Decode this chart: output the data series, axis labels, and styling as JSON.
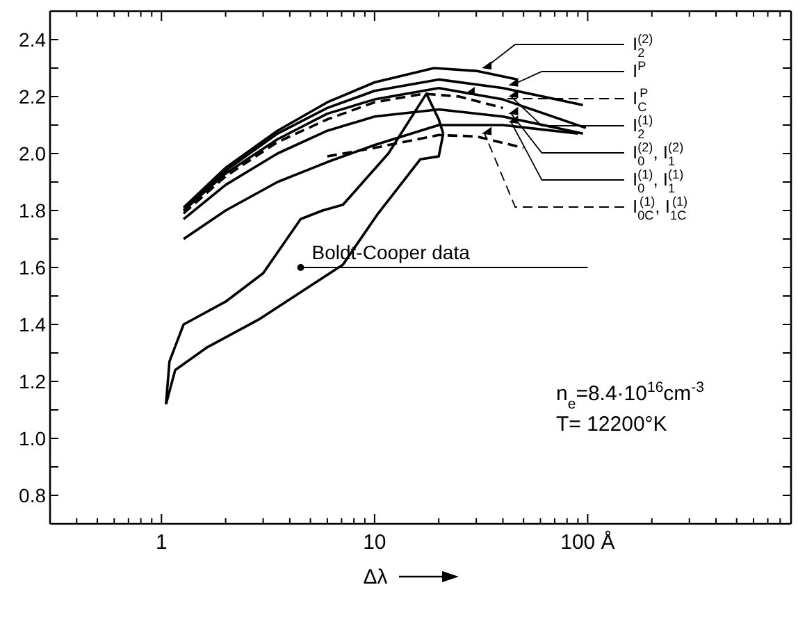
{
  "chart_data": {
    "type": "line",
    "xlabel": "Δλ",
    "log": "x",
    "xlim": [
      0.3,
      900
    ],
    "ylim": [
      0.7,
      2.5
    ],
    "xticks": [
      {
        "value": 0.4,
        "label": null
      },
      {
        "value": 0.5,
        "label": null
      },
      {
        "value": 0.6,
        "label": null
      },
      {
        "value": 0.7,
        "label": null
      },
      {
        "value": 0.8,
        "label": null
      },
      {
        "value": 0.9,
        "label": null
      },
      1,
      {
        "value": 2,
        "label": null
      },
      {
        "value": 3,
        "label": null
      },
      {
        "value": 4,
        "label": null
      },
      {
        "value": 5,
        "label": null
      },
      {
        "value": 6,
        "label": null
      },
      {
        "value": 7,
        "label": null
      },
      {
        "value": 8,
        "label": null
      },
      {
        "value": 9,
        "label": null
      },
      10,
      {
        "value": 20,
        "label": null
      },
      {
        "value": 30,
        "label": null
      },
      {
        "value": 40,
        "label": null
      },
      {
        "value": 50,
        "label": null
      },
      {
        "value": 60,
        "label": null
      },
      {
        "value": 70,
        "label": null
      },
      {
        "value": 80,
        "label": null
      },
      {
        "value": 90,
        "label": null
      },
      {
        "value": 100,
        "label": "100 Å"
      },
      {
        "value": 200,
        "label": null
      },
      {
        "value": 300,
        "label": null
      },
      {
        "value": 400,
        "label": null
      },
      {
        "value": 500,
        "label": null
      },
      {
        "value": 600,
        "label": null
      },
      {
        "value": 700,
        "label": null
      },
      {
        "value": 800,
        "label": null
      }
    ],
    "yticks": [
      {
        "value": 0.8,
        "label": "0.8"
      },
      {
        "value": 0.9,
        "label": null
      },
      {
        "value": 1.0,
        "label": "1.0"
      },
      {
        "value": 1.1,
        "label": null
      },
      {
        "value": 1.2,
        "label": "1.2"
      },
      {
        "value": 1.3,
        "label": null
      },
      {
        "value": 1.4,
        "label": "1.4"
      },
      {
        "value": 1.5,
        "label": null
      },
      {
        "value": 1.6,
        "label": "1.6"
      },
      {
        "value": 1.7,
        "label": null
      },
      {
        "value": 1.8,
        "label": "1.8"
      },
      {
        "value": 1.9,
        "label": null
      },
      {
        "value": 2.0,
        "label": "2.0"
      },
      {
        "value": 2.1,
        "label": null
      },
      {
        "value": 2.2,
        "label": "2.2"
      },
      {
        "value": 2.3,
        "label": null
      },
      {
        "value": 2.4,
        "label": "2.4"
      }
    ],
    "series": [
      {
        "name": "I$_{2}$$^{(2)}$",
        "color": "#000000",
        "x": [
          1.27,
          2,
          3.5,
          6,
          10,
          19,
          30,
          47
        ],
        "values": [
          1.81,
          1.95,
          2.08,
          2.18,
          2.25,
          2.3,
          2.29,
          2.26
        ]
      },
      {
        "name": "I$^{P}$",
        "color": "#000000",
        "x": [
          1.27,
          2,
          3.5,
          6,
          10,
          20,
          40,
          95
        ],
        "values": [
          1.8,
          1.94,
          2.07,
          2.16,
          2.22,
          2.26,
          2.23,
          2.17
        ]
      },
      {
        "name": "I$_{C}$$^{P}$",
        "color": "#000000",
        "line_style": "dashed",
        "x": [
          1.27,
          2,
          3.5,
          6,
          10,
          17,
          25,
          40
        ],
        "values": [
          1.79,
          1.92,
          2.04,
          2.12,
          2.18,
          2.21,
          2.2,
          2.16
        ]
      },
      {
        "name": "I$_{2}$$^{(1)}$",
        "color": "#000000",
        "x": [
          1.27,
          2,
          3.5,
          6,
          10,
          20,
          40,
          98
        ],
        "values": [
          1.8,
          1.93,
          2.05,
          2.14,
          2.19,
          2.23,
          2.19,
          2.09
        ]
      },
      {
        "name": "I$_{0}$$^{(2)}$, I$_{1}$$^{(2)}$",
        "color": "#000000",
        "x": [
          1.27,
          2,
          3.5,
          6,
          10,
          20,
          40,
          95
        ],
        "values": [
          1.77,
          1.89,
          2.0,
          2.08,
          2.13,
          2.155,
          2.13,
          2.07
        ]
      },
      {
        "name": "I$_{0}$$^{(1)}$, I$_{1}$$^{(1)}$",
        "color": "#000000",
        "x": [
          1.27,
          2,
          3.5,
          6,
          10,
          20,
          40,
          90
        ],
        "values": [
          1.7,
          1.8,
          1.9,
          1.97,
          2.03,
          2.1,
          2.1,
          2.07
        ]
      },
      {
        "name": "I$_{0C}$$^{(1)}$, I$_{1C}$$^{(1)}$",
        "color": "#000000",
        "line_style": "dashed",
        "x": [
          6,
          10,
          20,
          30,
          50
        ],
        "values": [
          1.99,
          2.02,
          2.065,
          2.06,
          2.02
        ]
      },
      {
        "color": "#000000",
        "x": [
          1.05,
          1.09,
          1.27,
          2.0,
          3.0,
          4.5,
          5.7,
          7.1,
          11.6,
          17.5,
          20,
          21
        ],
        "values": [
          1.12,
          1.27,
          1.4,
          1.48,
          1.58,
          1.77,
          1.8,
          1.82,
          2.0,
          2.21,
          2.12,
          2.07
        ]
      },
      {
        "color": "#000000",
        "x": [
          1.05,
          1.16,
          1.64,
          2.9,
          7.1,
          10.4,
          16.4,
          20,
          21
        ],
        "values": [
          1.12,
          1.24,
          1.32,
          1.42,
          1.61,
          1.79,
          1.98,
          1.99,
          2.07
        ]
      }
    ],
    "legend": "right",
    "annotations": [
      {
        "text": "Boldt-Cooper data",
        "x": 4.5,
        "y": 1.6
      },
      "n$_{e}$=8.4·10$^{16}$cm$^{-3}$",
      "T= 12200°K"
    ]
  }
}
